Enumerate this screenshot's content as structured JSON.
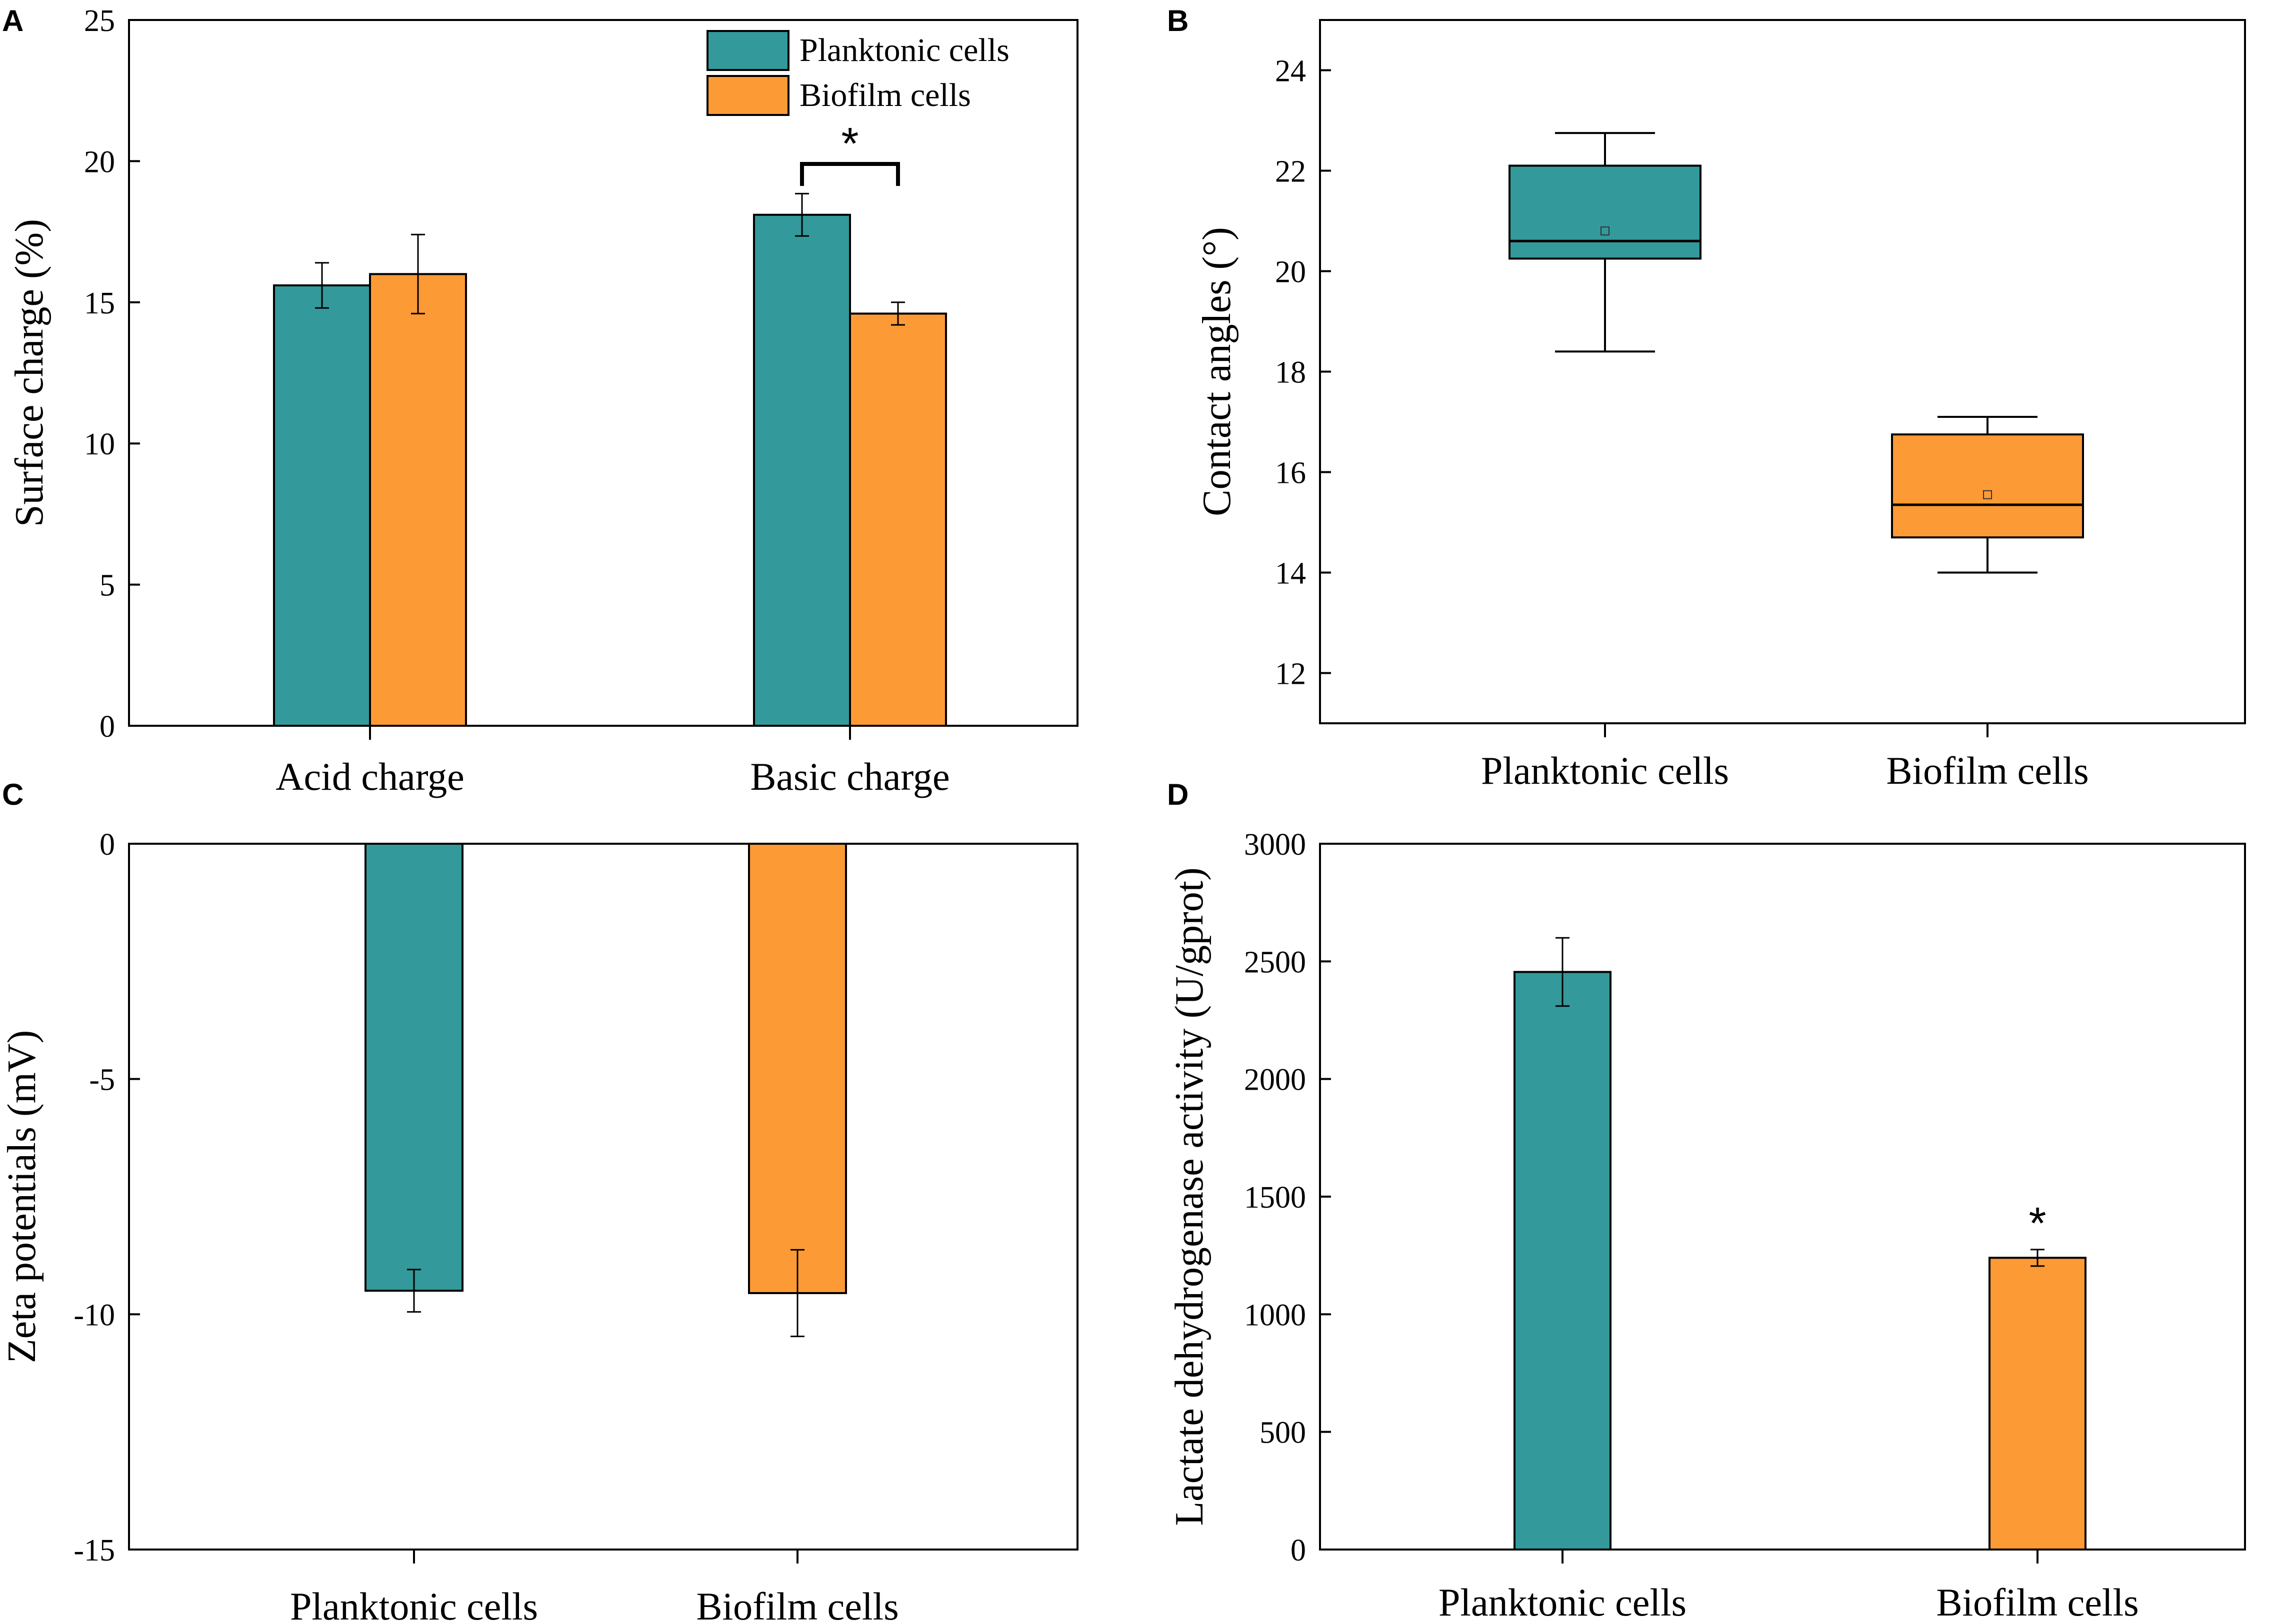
{
  "colors": {
    "planktonic": "#33999a",
    "biofilm": "#fc9a36",
    "axis": "#000000"
  },
  "legend": {
    "items": [
      "Planktonic cells",
      "Biofilm cells"
    ]
  },
  "chart_data": [
    {
      "panel": "A",
      "type": "bar",
      "ylabel": "Surface charge (%)",
      "ylim": [
        0,
        25
      ],
      "yticks": [
        0,
        5,
        10,
        15,
        20,
        25
      ],
      "categories": [
        "Acid charge",
        "Basic charge"
      ],
      "series": [
        {
          "name": "Planktonic cells",
          "values": [
            15.6,
            18.1
          ],
          "errors": [
            0.8,
            0.75
          ]
        },
        {
          "name": "Biofilm cells",
          "values": [
            16.0,
            14.6
          ],
          "errors": [
            1.4,
            0.4
          ]
        }
      ],
      "significance": [
        {
          "category": "Basic charge",
          "label": "*"
        }
      ],
      "legend_position": "top-right"
    },
    {
      "panel": "B",
      "type": "box",
      "ylabel": "Contact angles (°)",
      "ylim": [
        11,
        25
      ],
      "yticks": [
        12,
        14,
        16,
        18,
        20,
        22,
        24
      ],
      "categories": [
        "Planktonic cells",
        "Biofilm cells"
      ],
      "boxes": [
        {
          "name": "Planktonic cells",
          "min": 18.4,
          "q1": 20.25,
          "median": 20.6,
          "q3": 22.1,
          "max": 22.75,
          "mean": 20.8
        },
        {
          "name": "Biofilm cells",
          "min": 14.0,
          "q1": 14.7,
          "median": 15.35,
          "q3": 16.75,
          "max": 17.1,
          "mean": 15.55
        }
      ]
    },
    {
      "panel": "C",
      "type": "bar",
      "ylabel": "Zeta potentials (mV)",
      "ylim": [
        -15,
        0
      ],
      "yticks": [
        0,
        -5,
        -10,
        -15
      ],
      "categories": [
        "Planktonic cells",
        "Biofilm cells"
      ],
      "values": [
        -9.5,
        -9.55
      ],
      "errors": [
        0.45,
        0.92
      ]
    },
    {
      "panel": "D",
      "type": "bar",
      "ylabel": "Lactate dehydrogenase activity (U/gprot)",
      "ylim": [
        0,
        3000
      ],
      "yticks": [
        0,
        500,
        1000,
        1500,
        2000,
        2500,
        3000
      ],
      "categories": [
        "Planktonic cells",
        "Biofilm cells"
      ],
      "values": [
        2455,
        1240
      ],
      "errors": [
        145,
        35
      ],
      "significance": [
        {
          "category": "Biofilm cells",
          "label": "*"
        }
      ]
    }
  ]
}
